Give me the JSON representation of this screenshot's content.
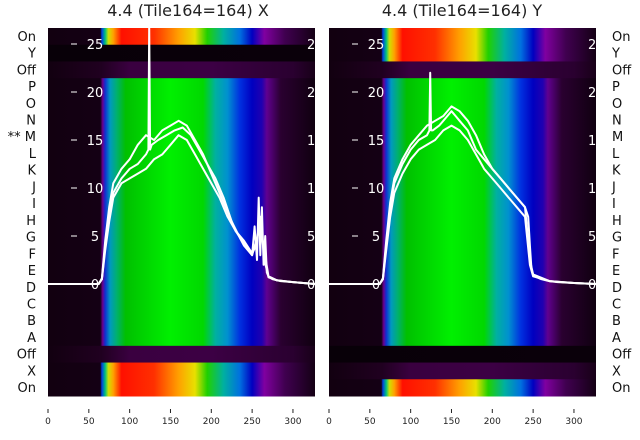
{
  "chart_data": [
    {
      "type": "heatmap",
      "title": "4.4 (Tile164=164) X",
      "row_labels": [
        "On",
        "Y",
        "Off",
        "P",
        "O",
        "N",
        "** M",
        "L",
        "K",
        "J",
        "I",
        "H",
        "G",
        "F",
        "E",
        "D",
        "C",
        "B",
        "A",
        "Off",
        "X",
        "On"
      ],
      "row_kinds": [
        "hot",
        "dark",
        "off",
        "peak",
        "peak",
        "peak",
        "peak",
        "peak",
        "peak",
        "peak",
        "peak",
        "peak",
        "peak",
        "peak",
        "peak",
        "peak",
        "peak",
        "peak",
        "peak",
        "off",
        "hot",
        "hot"
      ],
      "xlim": [
        0,
        327
      ],
      "xticks": [
        0,
        50,
        100,
        150,
        200,
        250,
        300
      ],
      "overlay_ylim": [
        -2.3,
        26.2
      ],
      "overlay_yticks": [
        0,
        5,
        10,
        15,
        20,
        25
      ],
      "overlay_series": [
        {
          "name": "profile",
          "x": [
            0,
            62,
            66,
            70,
            75,
            80,
            90,
            100,
            110,
            120,
            123,
            124,
            125,
            127,
            135,
            145,
            155,
            165,
            175,
            185,
            195,
            205,
            215,
            225,
            235,
            240,
            245,
            250,
            253,
            256,
            258,
            260,
            262,
            264,
            266,
            268,
            270,
            275,
            285,
            300,
            327
          ],
          "y": [
            0,
            0,
            0.5,
            4,
            7,
            9.5,
            11,
            12,
            12.5,
            13.5,
            14,
            27,
            14,
            14.5,
            15,
            15.5,
            16,
            16.3,
            15.5,
            14,
            12.5,
            11,
            9,
            6.5,
            4.8,
            4,
            3.5,
            3,
            6,
            2.5,
            9,
            3,
            8,
            2,
            5,
            1.2,
            0.8,
            0.5,
            0.3,
            0.2,
            0
          ]
        },
        {
          "name": "profile-2",
          "x": [
            0,
            62,
            66,
            70,
            75,
            80,
            90,
            100,
            110,
            120,
            130,
            140,
            150,
            160,
            170,
            180,
            190,
            200,
            210,
            220,
            230,
            240,
            250,
            255,
            260,
            265,
            270,
            280,
            300,
            327
          ],
          "y": [
            0,
            0,
            0.5,
            3.5,
            6.5,
            9,
            10.5,
            11,
            11.5,
            12,
            13,
            13.5,
            14.5,
            15.5,
            15,
            13.5,
            12,
            10.5,
            9,
            7,
            5.5,
            4.5,
            3.2,
            4,
            7,
            2.5,
            0.7,
            0.4,
            0.2,
            0
          ]
        },
        {
          "name": "profile-3",
          "x": [
            0,
            62,
            66,
            70,
            75,
            80,
            90,
            100,
            110,
            120,
            130,
            140,
            150,
            160,
            170,
            180,
            190,
            200,
            210,
            220,
            230,
            240,
            250,
            260,
            270,
            280,
            300,
            327
          ],
          "y": [
            0,
            0,
            0.6,
            4.5,
            8,
            10.5,
            12,
            13,
            14.5,
            15.5,
            15,
            16,
            16.5,
            17,
            16.5,
            15,
            13.5,
            11.5,
            9.5,
            7.5,
            5.5,
            4.2,
            3,
            6,
            0.8,
            0.4,
            0.2,
            0
          ]
        }
      ],
      "colormaps": {
        "peak": [
          [
            0,
            "#120010"
          ],
          [
            64,
            "#140014"
          ],
          [
            67,
            "#6a0090"
          ],
          [
            70,
            "#1030d0"
          ],
          [
            76,
            "#0098c0"
          ],
          [
            84,
            "#00b070"
          ],
          [
            95,
            "#00c000"
          ],
          [
            150,
            "#00f000"
          ],
          [
            190,
            "#00d800"
          ],
          [
            205,
            "#00b0a0"
          ],
          [
            220,
            "#0090d0"
          ],
          [
            235,
            "#0030e0"
          ],
          [
            250,
            "#0000c0"
          ],
          [
            262,
            "#2000b0"
          ],
          [
            268,
            "#600090"
          ],
          [
            285,
            "#2a0030"
          ],
          [
            327,
            "#100010"
          ]
        ],
        "hot": [
          [
            0,
            "#120010"
          ],
          [
            64,
            "#140014"
          ],
          [
            66,
            "#0040e0"
          ],
          [
            70,
            "#00c080"
          ],
          [
            74,
            "#d0e000"
          ],
          [
            80,
            "#ffa000"
          ],
          [
            90,
            "#ff1000"
          ],
          [
            130,
            "#ff3000"
          ],
          [
            160,
            "#ffa000"
          ],
          [
            180,
            "#e8e000"
          ],
          [
            195,
            "#20d000"
          ],
          [
            215,
            "#00b0a0"
          ],
          [
            235,
            "#0070e0"
          ],
          [
            250,
            "#0000c0"
          ],
          [
            265,
            "#8000a0"
          ],
          [
            290,
            "#400050"
          ],
          [
            327,
            "#140014"
          ]
        ],
        "off": [
          [
            0,
            "#120010"
          ],
          [
            65,
            "#200020"
          ],
          [
            100,
            "#3a0040"
          ],
          [
            200,
            "#3c0044"
          ],
          [
            300,
            "#2a0030"
          ],
          [
            327,
            "#180018"
          ]
        ],
        "dark": [
          [
            0,
            "#080008"
          ],
          [
            327,
            "#0a000a"
          ]
        ]
      }
    },
    {
      "type": "heatmap",
      "title": "4.4 (Tile164=164) Y",
      "row_labels": [
        "On",
        "Y",
        "Off",
        "P",
        "O",
        "N",
        "M",
        "L",
        "K",
        "J",
        "I",
        "H",
        "G",
        "F",
        "E",
        "D",
        "C",
        "B",
        "A",
        "Off",
        "X",
        "On"
      ],
      "row_kinds": [
        "hot",
        "hot",
        "off",
        "peak",
        "peak",
        "peak",
        "peak",
        "peak",
        "peak",
        "peak",
        "peak",
        "peak",
        "peak",
        "peak",
        "peak",
        "peak",
        "peak",
        "peak",
        "peak",
        "dark",
        "off",
        "hot"
      ],
      "xlim": [
        0,
        327
      ],
      "xticks": [
        0,
        50,
        100,
        150,
        200,
        250,
        300
      ],
      "overlay_ylim": [
        -2.3,
        26.2
      ],
      "overlay_yticks": [
        0,
        5,
        10,
        15,
        20,
        25
      ],
      "overlay_series": [
        {
          "name": "profile",
          "x": [
            0,
            62,
            66,
            70,
            75,
            80,
            90,
            100,
            110,
            120,
            123,
            124,
            125,
            127,
            135,
            145,
            150,
            155,
            160,
            170,
            180,
            190,
            200,
            210,
            220,
            230,
            240,
            244,
            246,
            248,
            250,
            255,
            260,
            265,
            270,
            280,
            300,
            327
          ],
          "y": [
            0,
            0,
            0.5,
            4,
            8,
            10.5,
            12.5,
            14,
            15,
            15.5,
            16,
            22,
            16,
            16,
            16.5,
            17.5,
            18,
            17.5,
            17,
            16,
            14,
            13,
            12,
            11,
            10,
            9,
            8,
            7,
            4,
            1.5,
            1,
            0.7,
            0.5,
            0.4,
            0.3,
            0.2,
            0.1,
            0
          ]
        },
        {
          "name": "profile-2",
          "x": [
            0,
            62,
            66,
            70,
            75,
            80,
            90,
            100,
            110,
            120,
            130,
            140,
            150,
            160,
            170,
            180,
            190,
            200,
            210,
            220,
            230,
            240,
            246,
            250,
            270,
            300,
            327
          ],
          "y": [
            0,
            0,
            0.5,
            3.5,
            7,
            9.5,
            11.5,
            13,
            14,
            14.5,
            15,
            16,
            16.5,
            16,
            15,
            13.5,
            12,
            11,
            10,
            9,
            8,
            7,
            2,
            0.8,
            0.3,
            0.1,
            0
          ]
        },
        {
          "name": "profile-3",
          "x": [
            0,
            62,
            66,
            70,
            75,
            80,
            90,
            100,
            110,
            120,
            130,
            140,
            150,
            160,
            170,
            180,
            190,
            200,
            210,
            220,
            230,
            240,
            246,
            250,
            270,
            300,
            327
          ],
          "y": [
            0,
            0,
            0.6,
            4.5,
            8.5,
            11,
            13,
            14.5,
            15.5,
            16.5,
            17,
            17.5,
            18.5,
            18,
            17,
            15.5,
            13.5,
            12,
            11,
            10,
            9,
            8,
            2.5,
            1,
            0.3,
            0.1,
            0
          ]
        }
      ]
    }
  ]
}
